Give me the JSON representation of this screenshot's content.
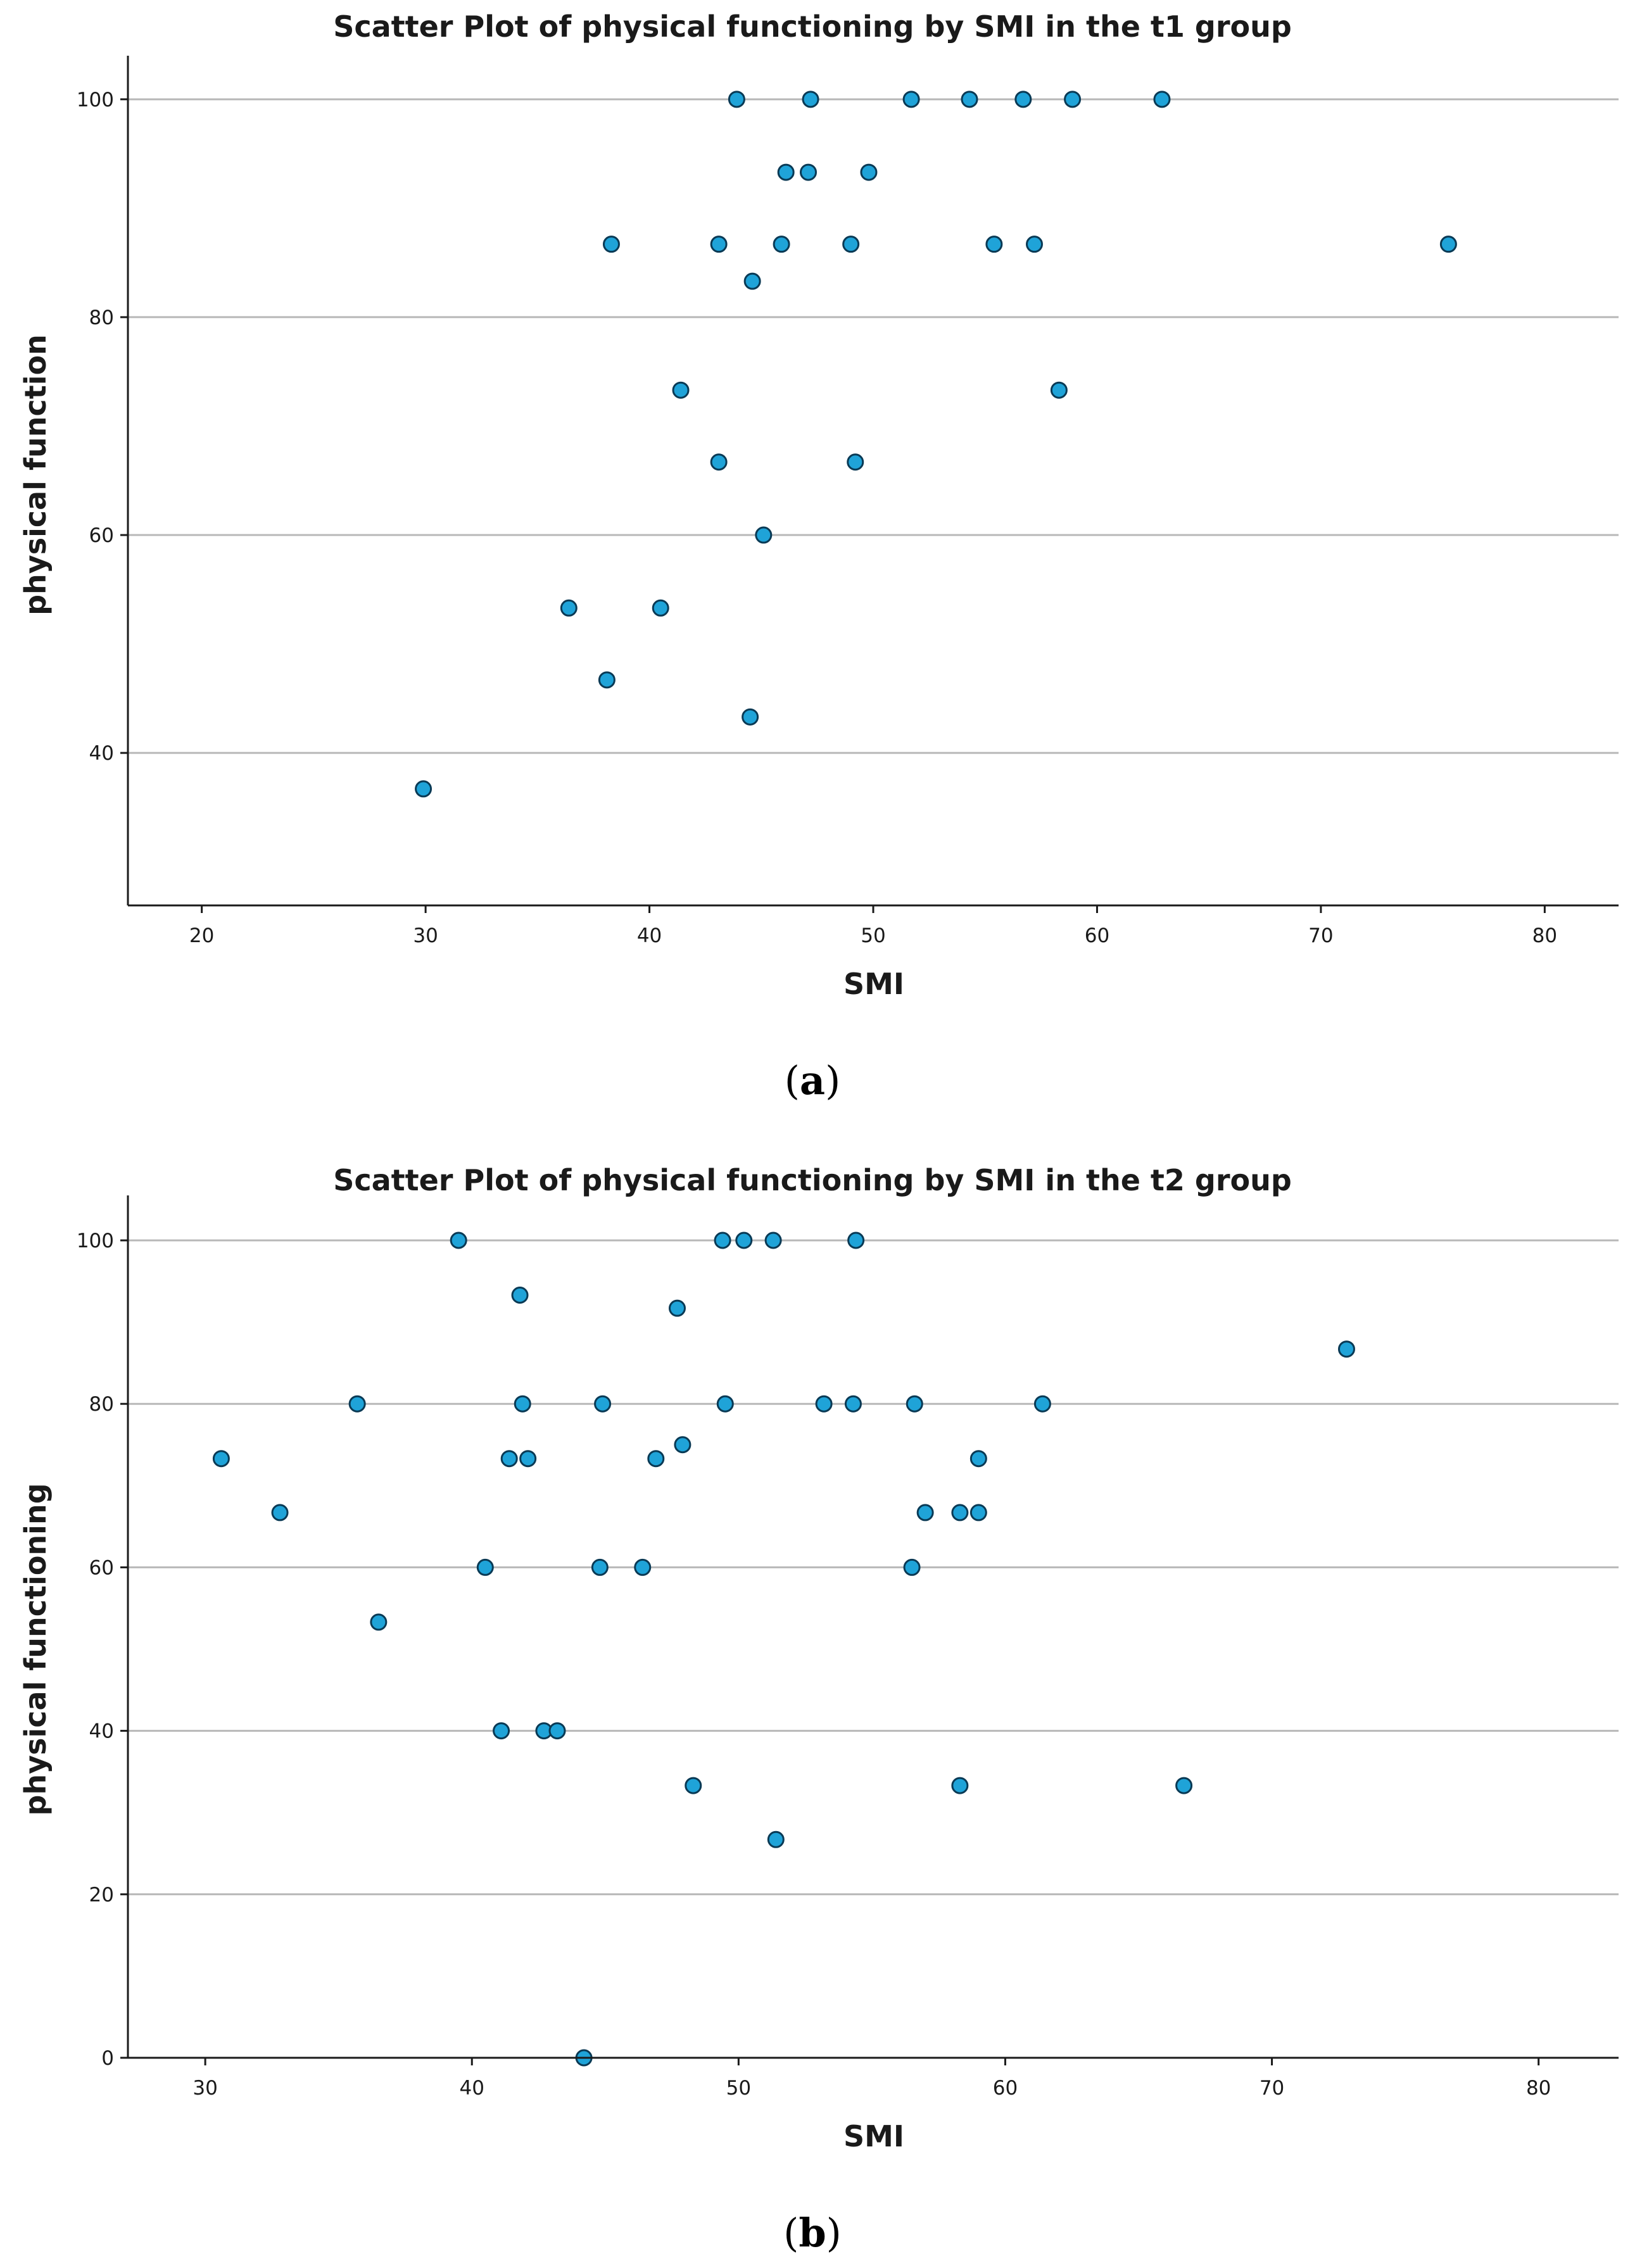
{
  "chart_data": [
    {
      "type": "scatter",
      "title": "Scatter Plot of physical functioning by SMI in the t1 group",
      "xlabel": "SMI",
      "ylabel": "physical function",
      "xlim": [
        16.7,
        83.3
      ],
      "ylim": [
        26.0,
        104.0
      ],
      "xticks": [
        20,
        30,
        40,
        50,
        60,
        70,
        80
      ],
      "yticks": [
        40,
        60,
        80,
        100
      ],
      "grid": true,
      "caption_open": "(",
      "caption_letter": "a",
      "caption_close": ")",
      "point_color": "#1fa3d8",
      "series": [
        {
          "name": "t1",
          "points": [
            [
              43.9,
              100
            ],
            [
              47.2,
              100
            ],
            [
              51.7,
              100
            ],
            [
              54.3,
              100
            ],
            [
              56.7,
              100
            ],
            [
              58.9,
              100
            ],
            [
              62.9,
              100
            ],
            [
              46.1,
              93.3
            ],
            [
              47.1,
              93.3
            ],
            [
              49.8,
              93.3
            ],
            [
              38.3,
              86.7
            ],
            [
              43.1,
              86.7
            ],
            [
              45.9,
              86.7
            ],
            [
              49.0,
              86.7
            ],
            [
              55.4,
              86.7
            ],
            [
              57.2,
              86.7
            ],
            [
              75.7,
              86.7
            ],
            [
              44.6,
              83.3
            ],
            [
              41.4,
              73.3
            ],
            [
              58.3,
              73.3
            ],
            [
              43.1,
              66.7
            ],
            [
              49.2,
              66.7
            ],
            [
              45.1,
              60
            ],
            [
              36.4,
              53.3
            ],
            [
              40.5,
              53.3
            ],
            [
              38.1,
              46.7
            ],
            [
              44.5,
              43.3
            ],
            [
              29.9,
              36.7
            ]
          ]
        }
      ]
    },
    {
      "type": "scatter",
      "title": "Scatter Plot of physical functioning by SMI in the t2 group",
      "xlabel": "SMI",
      "ylabel": "physical functioning",
      "xlim": [
        27.1,
        83.0
      ],
      "ylim": [
        0,
        105.5
      ],
      "xticks": [
        30,
        40,
        50,
        60,
        70,
        80
      ],
      "yticks": [
        0,
        20,
        40,
        60,
        80,
        100
      ],
      "grid": true,
      "caption_open": "(",
      "caption_letter": "b",
      "caption_close": ")",
      "point_color": "#1fa3d8",
      "series": [
        {
          "name": "t2",
          "points": [
            [
              39.5,
              100
            ],
            [
              49.4,
              100
            ],
            [
              50.2,
              100
            ],
            [
              51.3,
              100
            ],
            [
              54.4,
              100
            ],
            [
              41.8,
              93.3
            ],
            [
              47.7,
              91.7
            ],
            [
              72.8,
              86.7
            ],
            [
              35.7,
              80
            ],
            [
              41.9,
              80
            ],
            [
              44.9,
              80
            ],
            [
              49.5,
              80
            ],
            [
              53.2,
              80
            ],
            [
              54.3,
              80
            ],
            [
              56.6,
              80
            ],
            [
              61.4,
              80
            ],
            [
              47.9,
              75
            ],
            [
              30.6,
              73.3
            ],
            [
              41.4,
              73.3
            ],
            [
              42.1,
              73.3
            ],
            [
              46.9,
              73.3
            ],
            [
              59.0,
              73.3
            ],
            [
              32.8,
              66.7
            ],
            [
              57.0,
              66.7
            ],
            [
              58.3,
              66.7
            ],
            [
              59.0,
              66.7
            ],
            [
              40.5,
              60
            ],
            [
              44.8,
              60
            ],
            [
              46.4,
              60
            ],
            [
              56.5,
              60
            ],
            [
              36.5,
              53.3
            ],
            [
              41.1,
              40
            ],
            [
              42.7,
              40
            ],
            [
              43.2,
              40
            ],
            [
              48.3,
              33.3
            ],
            [
              58.3,
              33.3
            ],
            [
              66.7,
              33.3
            ],
            [
              51.4,
              26.7
            ],
            [
              44.2,
              0
            ]
          ]
        }
      ]
    }
  ]
}
